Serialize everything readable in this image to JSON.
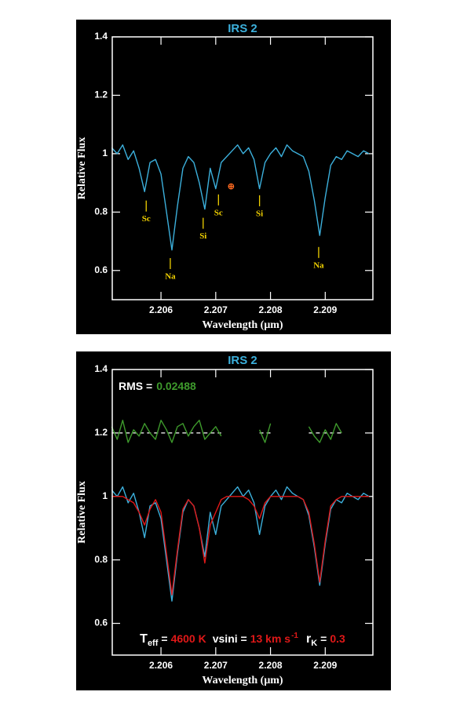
{
  "chart_data": [
    {
      "type": "line",
      "title": "IRS 2",
      "xlabel": "Wavelength (μm)",
      "ylabel": "Relative Flux",
      "xlim": [
        2.20511,
        2.20987
      ],
      "ylim": [
        0.5,
        1.4
      ],
      "xticks": [
        2.206,
        2.207,
        2.208,
        2.209
      ],
      "yticks": [
        0.6,
        0.8,
        1,
        1.2,
        1.4
      ],
      "x": [
        2.2051,
        2.2052,
        2.2053,
        2.2054,
        2.2055,
        2.2056,
        2.2057,
        2.2058,
        2.2059,
        2.206,
        2.2061,
        2.2062,
        2.2063,
        2.2064,
        2.2065,
        2.2066,
        2.2067,
        2.2068,
        2.2069,
        2.207,
        2.2071,
        2.2072,
        2.2073,
        2.2074,
        2.2075,
        2.2076,
        2.2077,
        2.2078,
        2.2079,
        2.208,
        2.2081,
        2.2082,
        2.2083,
        2.2084,
        2.2085,
        2.2086,
        2.2087,
        2.2088,
        2.2089,
        2.209,
        2.2091,
        2.2092,
        2.2093,
        2.2094,
        2.2095,
        2.2096,
        2.2097,
        2.2098
      ],
      "series": [
        {
          "color": "#3cb0dc",
          "values": [
            1.02,
            1.0,
            1.03,
            0.98,
            1.01,
            0.95,
            0.87,
            0.97,
            0.98,
            0.93,
            0.8,
            0.67,
            0.82,
            0.95,
            0.99,
            0.97,
            0.9,
            0.81,
            0.95,
            0.88,
            0.97,
            0.99,
            1.01,
            1.03,
            1.0,
            1.02,
            0.98,
            0.88,
            0.97,
            1.0,
            1.02,
            0.99,
            1.03,
            1.01,
            1.0,
            0.99,
            0.94,
            0.84,
            0.72,
            0.85,
            0.96,
            0.99,
            0.98,
            1.01,
            1.0,
            0.99,
            1.01,
            1.0
          ]
        }
      ],
      "annotations": [
        {
          "text": "Sc",
          "x": 2.20573,
          "y": 0.775,
          "color": "#f0d000"
        },
        {
          "text": "Na",
          "x": 2.20617,
          "y": 0.578,
          "color": "#f0d000"
        },
        {
          "text": "Si",
          "x": 2.20677,
          "y": 0.716,
          "color": "#f0d000"
        },
        {
          "text": "Sc",
          "x": 2.20705,
          "y": 0.796,
          "color": "#f0d000"
        },
        {
          "text": "Si",
          "x": 2.2078,
          "y": 0.793,
          "color": "#f0d000"
        },
        {
          "text": "Na",
          "x": 2.20888,
          "y": 0.616,
          "color": "#f0d000"
        }
      ],
      "symbol": {
        "text": "⊕",
        "x": 2.20728,
        "y": 0.885,
        "color": "#ff6a20"
      }
    },
    {
      "type": "line",
      "title": "IRS 2",
      "xlabel": "Wavelength (μm)",
      "ylabel": "Relative Flux",
      "xlim": [
        2.20511,
        2.20987
      ],
      "ylim": [
        0.5,
        1.4
      ],
      "xticks": [
        2.206,
        2.207,
        2.208,
        2.209
      ],
      "yticks": [
        0.6,
        0.8,
        1,
        1.2,
        1.4
      ],
      "x": [
        2.2051,
        2.2052,
        2.2053,
        2.2054,
        2.2055,
        2.2056,
        2.2057,
        2.2058,
        2.2059,
        2.206,
        2.2061,
        2.2062,
        2.2063,
        2.2064,
        2.2065,
        2.2066,
        2.2067,
        2.2068,
        2.2069,
        2.207,
        2.2071,
        2.2072,
        2.2073,
        2.2074,
        2.2075,
        2.2076,
        2.2077,
        2.2078,
        2.2079,
        2.208,
        2.2081,
        2.2082,
        2.2083,
        2.2084,
        2.2085,
        2.2086,
        2.2087,
        2.2088,
        2.2089,
        2.209,
        2.2091,
        2.2092,
        2.2093,
        2.2094,
        2.2095,
        2.2096,
        2.2097,
        2.2098
      ],
      "series": [
        {
          "color": "#3cb0dc",
          "values": [
            1.02,
            1.0,
            1.03,
            0.98,
            1.01,
            0.95,
            0.87,
            0.97,
            0.98,
            0.93,
            0.8,
            0.67,
            0.82,
            0.95,
            0.99,
            0.97,
            0.9,
            0.81,
            0.95,
            0.88,
            0.97,
            0.99,
            1.01,
            1.03,
            1.0,
            1.02,
            0.98,
            0.88,
            0.97,
            1.0,
            1.02,
            0.99,
            1.03,
            1.01,
            1.0,
            0.99,
            0.94,
            0.84,
            0.72,
            0.85,
            0.96,
            0.99,
            0.98,
            1.01,
            1.0,
            0.99,
            1.01,
            1.0
          ]
        },
        {
          "color": "#e01818",
          "values": [
            1.0,
            1.0,
            1.0,
            0.99,
            0.98,
            0.95,
            0.91,
            0.96,
            0.99,
            0.95,
            0.82,
            0.69,
            0.83,
            0.96,
            0.99,
            0.97,
            0.9,
            0.79,
            0.91,
            0.95,
            0.99,
            1.0,
            1.0,
            1.0,
            1.0,
            0.99,
            0.97,
            0.93,
            0.98,
            1.0,
            1.0,
            1.0,
            1.0,
            1.0,
            1.0,
            0.99,
            0.95,
            0.85,
            0.73,
            0.86,
            0.97,
            0.99,
            1.0,
            1.0,
            1.0,
            1.0,
            1.0,
            1.0
          ]
        },
        {
          "color": "#3e9a2c",
          "reference": 1.2,
          "values": [
            1.22,
            1.18,
            1.24,
            1.17,
            1.21,
            1.19,
            1.23,
            1.2,
            1.18,
            1.24,
            1.21,
            1.17,
            1.22,
            1.23,
            1.19,
            1.22,
            1.24,
            1.18,
            1.2,
            1.22,
            1.19,
            null,
            null,
            null,
            null,
            null,
            null,
            1.21,
            1.17,
            1.23,
            null,
            null,
            null,
            null,
            null,
            null,
            1.22,
            1.19,
            1.17,
            1.21,
            1.18,
            1.23,
            1.2,
            null,
            null,
            null,
            null,
            null
          ]
        }
      ],
      "rms": {
        "label": "RMS =",
        "value": 0.02488,
        "color": "#3e9a2c"
      },
      "params": {
        "teff_symbol": "T",
        "teff_sub": "eff",
        "eq1": "=",
        "teff": "4600 K",
        "vsini_label": "vsini =",
        "vsini": "13 km s",
        "vsini_exp": "-1",
        "rk_symbol": "r",
        "rk_sub": "K",
        "eq2": "=",
        "rk": "0.3",
        "color": "#e01818"
      }
    }
  ]
}
